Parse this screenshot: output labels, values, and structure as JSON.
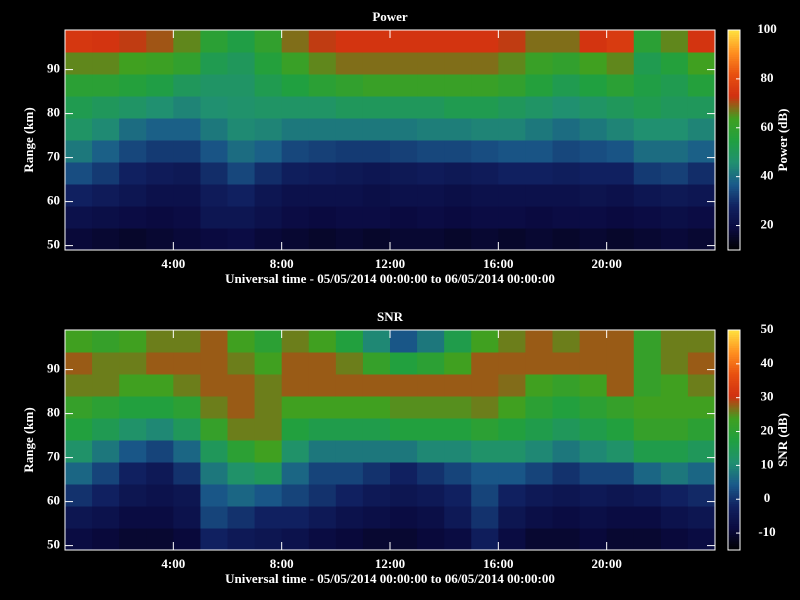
{
  "chart_data": [
    {
      "type": "heatmap",
      "title": "Power",
      "xlabel": "Universal time - 05/05/2014 00:00:00 to 06/05/2014 00:00:00",
      "ylabel": "Range (km)",
      "colorbar_label": "Power (dB)",
      "x": [
        0.5,
        1.5,
        2.5,
        3.5,
        4.5,
        5.5,
        6.5,
        7.5,
        8.5,
        9.5,
        10.5,
        11.5,
        12.5,
        13.5,
        14.5,
        15.5,
        16.5,
        17.5,
        18.5,
        19.5,
        20.5,
        21.5,
        22.5,
        23.5
      ],
      "y": [
        51.5,
        56.5,
        61.5,
        66.5,
        71.5,
        76.5,
        81.5,
        86.5,
        91.5,
        96.5
      ],
      "values": [
        [
          18,
          17,
          16,
          17,
          18,
          19,
          20,
          18,
          17,
          16,
          17,
          16,
          17,
          17,
          16,
          17,
          16,
          17,
          16,
          17,
          16,
          17,
          18,
          17
        ],
        [
          22,
          21,
          20,
          19,
          20,
          24,
          24,
          22,
          20,
          19,
          20,
          20,
          19,
          20,
          19,
          20,
          20,
          19,
          20,
          20,
          19,
          20,
          21,
          20
        ],
        [
          28,
          26,
          24,
          22,
          22,
          26,
          28,
          24,
          22,
          22,
          22,
          21,
          22,
          22,
          21,
          22,
          22,
          22,
          22,
          23,
          22,
          24,
          25,
          24
        ],
        [
          35,
          32,
          28,
          26,
          25,
          30,
          34,
          30,
          27,
          26,
          25,
          24,
          25,
          26,
          25,
          26,
          28,
          28,
          27,
          28,
          28,
          32,
          33,
          30
        ],
        [
          42,
          38,
          34,
          32,
          32,
          36,
          40,
          38,
          34,
          33,
          32,
          32,
          33,
          34,
          34,
          35,
          36,
          36,
          34,
          35,
          36,
          40,
          40,
          38
        ],
        [
          48,
          45,
          40,
          38,
          38,
          42,
          45,
          44,
          42,
          42,
          42,
          42,
          42,
          43,
          43,
          44,
          44,
          42,
          40,
          42,
          44,
          46,
          46,
          44
        ],
        [
          52,
          50,
          48,
          46,
          44,
          46,
          47,
          48,
          48,
          48,
          50,
          50,
          50,
          50,
          52,
          52,
          50,
          48,
          46,
          48,
          50,
          52,
          50,
          50
        ],
        [
          58,
          58,
          56,
          54,
          50,
          48,
          48,
          52,
          55,
          58,
          60,
          62,
          62,
          62,
          62,
          62,
          60,
          56,
          52,
          55,
          58,
          54,
          52,
          56
        ],
        [
          66,
          66,
          64,
          63,
          60,
          52,
          50,
          56,
          62,
          66,
          68,
          68,
          68,
          68,
          68,
          68,
          66,
          62,
          60,
          64,
          66,
          52,
          56,
          64
        ],
        [
          75,
          74,
          72,
          70,
          66,
          58,
          54,
          60,
          68,
          72,
          74,
          74,
          74,
          74,
          74,
          74,
          72,
          68,
          68,
          74,
          76,
          58,
          66,
          74
        ]
      ],
      "xlim": [
        0,
        24
      ],
      "ylim": [
        49,
        99
      ],
      "zlim": [
        10,
        100
      ],
      "xticks": [
        {
          "value": 4,
          "label": "4:00"
        },
        {
          "value": 8,
          "label": "8:00"
        },
        {
          "value": 12,
          "label": "12:00"
        },
        {
          "value": 16,
          "label": "16:00"
        },
        {
          "value": 20,
          "label": "20:00"
        }
      ],
      "yticks": [
        50,
        60,
        70,
        80,
        90
      ],
      "zticks": [
        20,
        40,
        60,
        80,
        100
      ],
      "colors": [
        "#000000",
        "#0a0a40",
        "#102060",
        "#1a5a8a",
        "#209070",
        "#20a040",
        "#40a020",
        "#d03010",
        "#e85010",
        "#ff9020",
        "#ffe040"
      ]
    },
    {
      "type": "heatmap",
      "title": "SNR",
      "xlabel": "Universal time - 05/05/2014 00:00:00 to 06/05/2014 00:00:00",
      "ylabel": "Range (km)",
      "colorbar_label": "SNR (dB)",
      "x": [
        0.5,
        1.5,
        2.5,
        3.5,
        4.5,
        5.5,
        6.5,
        7.5,
        8.5,
        9.5,
        10.5,
        11.5,
        12.5,
        13.5,
        14.5,
        15.5,
        16.5,
        17.5,
        18.5,
        19.5,
        20.5,
        21.5,
        22.5,
        23.5
      ],
      "y": [
        51.5,
        56.5,
        61.5,
        66.5,
        71.5,
        76.5,
        81.5,
        86.5,
        91.5,
        96.5
      ],
      "values": [
        [
          -8,
          -9,
          -10,
          -10,
          -9,
          -2,
          -4,
          -5,
          -6,
          -8,
          -9,
          -10,
          -10,
          -9,
          -8,
          -3,
          -8,
          -10,
          -10,
          -9,
          -10,
          -10,
          -9,
          -8
        ],
        [
          -5,
          -6,
          -8,
          -8,
          -6,
          2,
          0,
          -2,
          -2,
          -4,
          -6,
          -7,
          -8,
          -7,
          -4,
          0,
          -5,
          -7,
          -8,
          -7,
          -8,
          -8,
          -6,
          -5
        ],
        [
          0,
          -2,
          -5,
          -6,
          -5,
          4,
          6,
          4,
          2,
          0,
          -2,
          -4,
          -5,
          -4,
          -2,
          2,
          -2,
          -4,
          -5,
          -4,
          -5,
          -4,
          -2,
          -1
        ],
        [
          6,
          2,
          -2,
          -4,
          0,
          8,
          12,
          14,
          6,
          2,
          2,
          0,
          -2,
          0,
          2,
          4,
          4,
          2,
          0,
          2,
          2,
          6,
          8,
          6
        ],
        [
          12,
          8,
          4,
          2,
          6,
          14,
          20,
          24,
          12,
          8,
          8,
          8,
          8,
          10,
          10,
          12,
          12,
          10,
          8,
          10,
          12,
          16,
          16,
          14
        ],
        [
          18,
          15,
          12,
          10,
          14,
          22,
          26,
          26,
          18,
          16,
          16,
          16,
          18,
          18,
          18,
          20,
          18,
          16,
          14,
          16,
          18,
          22,
          22,
          20
        ],
        [
          22,
          20,
          18,
          18,
          20,
          26,
          28,
          26,
          24,
          24,
          24,
          24,
          25,
          25,
          25,
          26,
          24,
          20,
          18,
          20,
          22,
          24,
          24,
          24
        ],
        [
          26,
          26,
          24,
          24,
          26,
          28,
          28,
          26,
          28,
          28,
          28,
          28,
          28,
          28,
          28,
          28,
          27,
          24,
          22,
          24,
          28,
          22,
          24,
          26
        ],
        [
          28,
          26,
          26,
          28,
          28,
          28,
          26,
          24,
          28,
          28,
          26,
          22,
          18,
          20,
          24,
          28,
          28,
          28,
          28,
          28,
          28,
          22,
          26,
          28
        ],
        [
          24,
          22,
          24,
          26,
          26,
          28,
          24,
          20,
          26,
          24,
          18,
          10,
          4,
          8,
          16,
          24,
          26,
          28,
          26,
          28,
          28,
          22,
          26,
          26
        ]
      ],
      "xlim": [
        0,
        24
      ],
      "ylim": [
        49,
        99
      ],
      "zlim": [
        -15,
        50
      ],
      "xticks": [
        {
          "value": 4,
          "label": "4:00"
        },
        {
          "value": 8,
          "label": "8:00"
        },
        {
          "value": 12,
          "label": "12:00"
        },
        {
          "value": 16,
          "label": "16:00"
        },
        {
          "value": 20,
          "label": "20:00"
        }
      ],
      "yticks": [
        50,
        60,
        70,
        80,
        90
      ],
      "zticks": [
        -10,
        0,
        10,
        20,
        30,
        40,
        50
      ],
      "colors": [
        "#000000",
        "#0a0a40",
        "#102060",
        "#1a5a8a",
        "#209070",
        "#20a040",
        "#40a020",
        "#d03010",
        "#e85010",
        "#ff9020",
        "#ffe040"
      ]
    }
  ]
}
